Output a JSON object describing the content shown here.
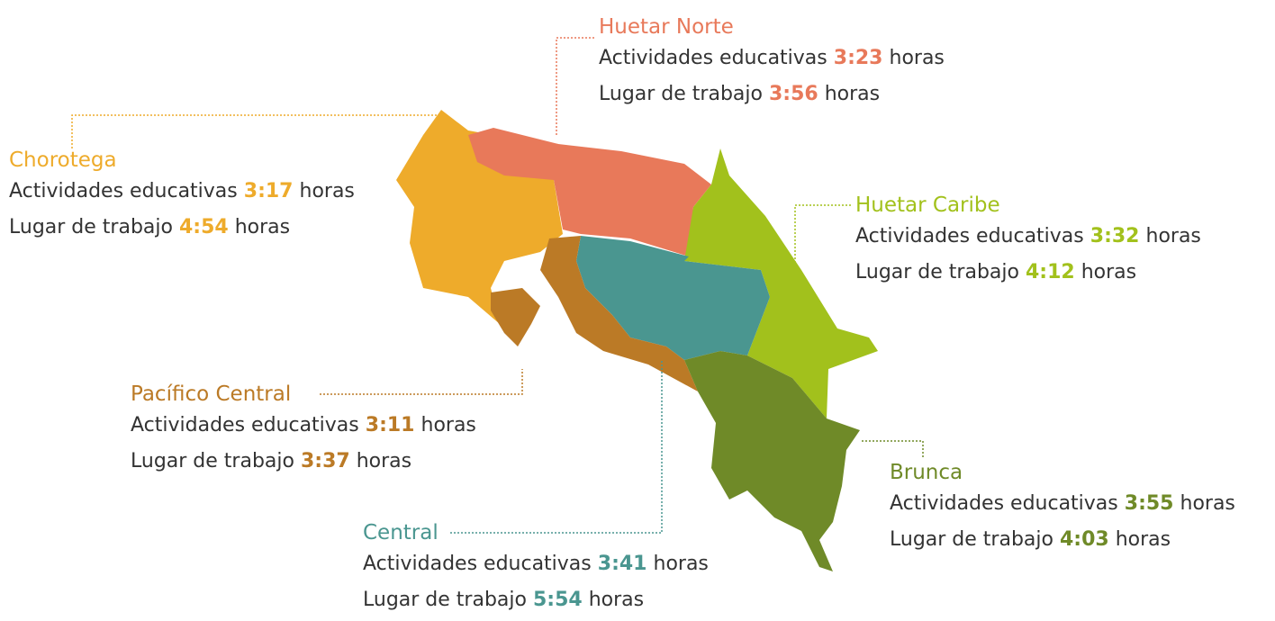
{
  "regions": [
    {
      "name": "Huetar Norte",
      "color": "#e8795a",
      "lines": [
        {
          "label": "Actividades educativas",
          "value": "3:23",
          "unit": "horas"
        },
        {
          "label": "Lugar de trabajo",
          "value": "3:56",
          "unit": "horas"
        }
      ]
    },
    {
      "name": "Chorotega",
      "color": "#eeab2b",
      "lines": [
        {
          "label": "Actividades educativas",
          "value": "3:17",
          "unit": "horas"
        },
        {
          "label": "Lugar de trabajo",
          "value": "4:54",
          "unit": "horas"
        }
      ]
    },
    {
      "name": "Huetar Caribe",
      "color": "#a2c11c",
      "lines": [
        {
          "label": "Actividades educativas",
          "value": "3:32",
          "unit": "horas"
        },
        {
          "label": "Lugar de trabajo",
          "value": "4:12",
          "unit": "horas"
        }
      ]
    },
    {
      "name": "Pacífico Central",
      "color": "#bb7a26",
      "lines": [
        {
          "label": "Actividades educativas",
          "value": "3:11",
          "unit": "horas"
        },
        {
          "label": "Lugar de trabajo",
          "value": "3:37",
          "unit": "horas"
        }
      ]
    },
    {
      "name": "Brunca",
      "color": "#6f8a28",
      "lines": [
        {
          "label": "Actividades educativas",
          "value": "3:55",
          "unit": "horas"
        },
        {
          "label": "Lugar de trabajo",
          "value": "4:03",
          "unit": "horas"
        }
      ]
    },
    {
      "name": "Central",
      "color": "#4a9690",
      "lines": [
        {
          "label": "Actividades educativas",
          "value": "3:41",
          "unit": "horas"
        },
        {
          "label": "Lugar de trabajo",
          "value": "5:54",
          "unit": "horas"
        }
      ]
    }
  ]
}
